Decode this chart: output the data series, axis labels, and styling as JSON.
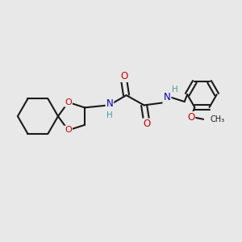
{
  "background_color": "#e8e8e8",
  "bond_color": "#1a1a1a",
  "oxygen_color": "#cc0000",
  "nitrogen_color": "#0000bb",
  "hydrogen_color": "#4a9a9a",
  "figsize": [
    3.0,
    3.0
  ],
  "dpi": 100,
  "xlim": [
    0,
    10
  ],
  "ylim": [
    0,
    10
  ]
}
